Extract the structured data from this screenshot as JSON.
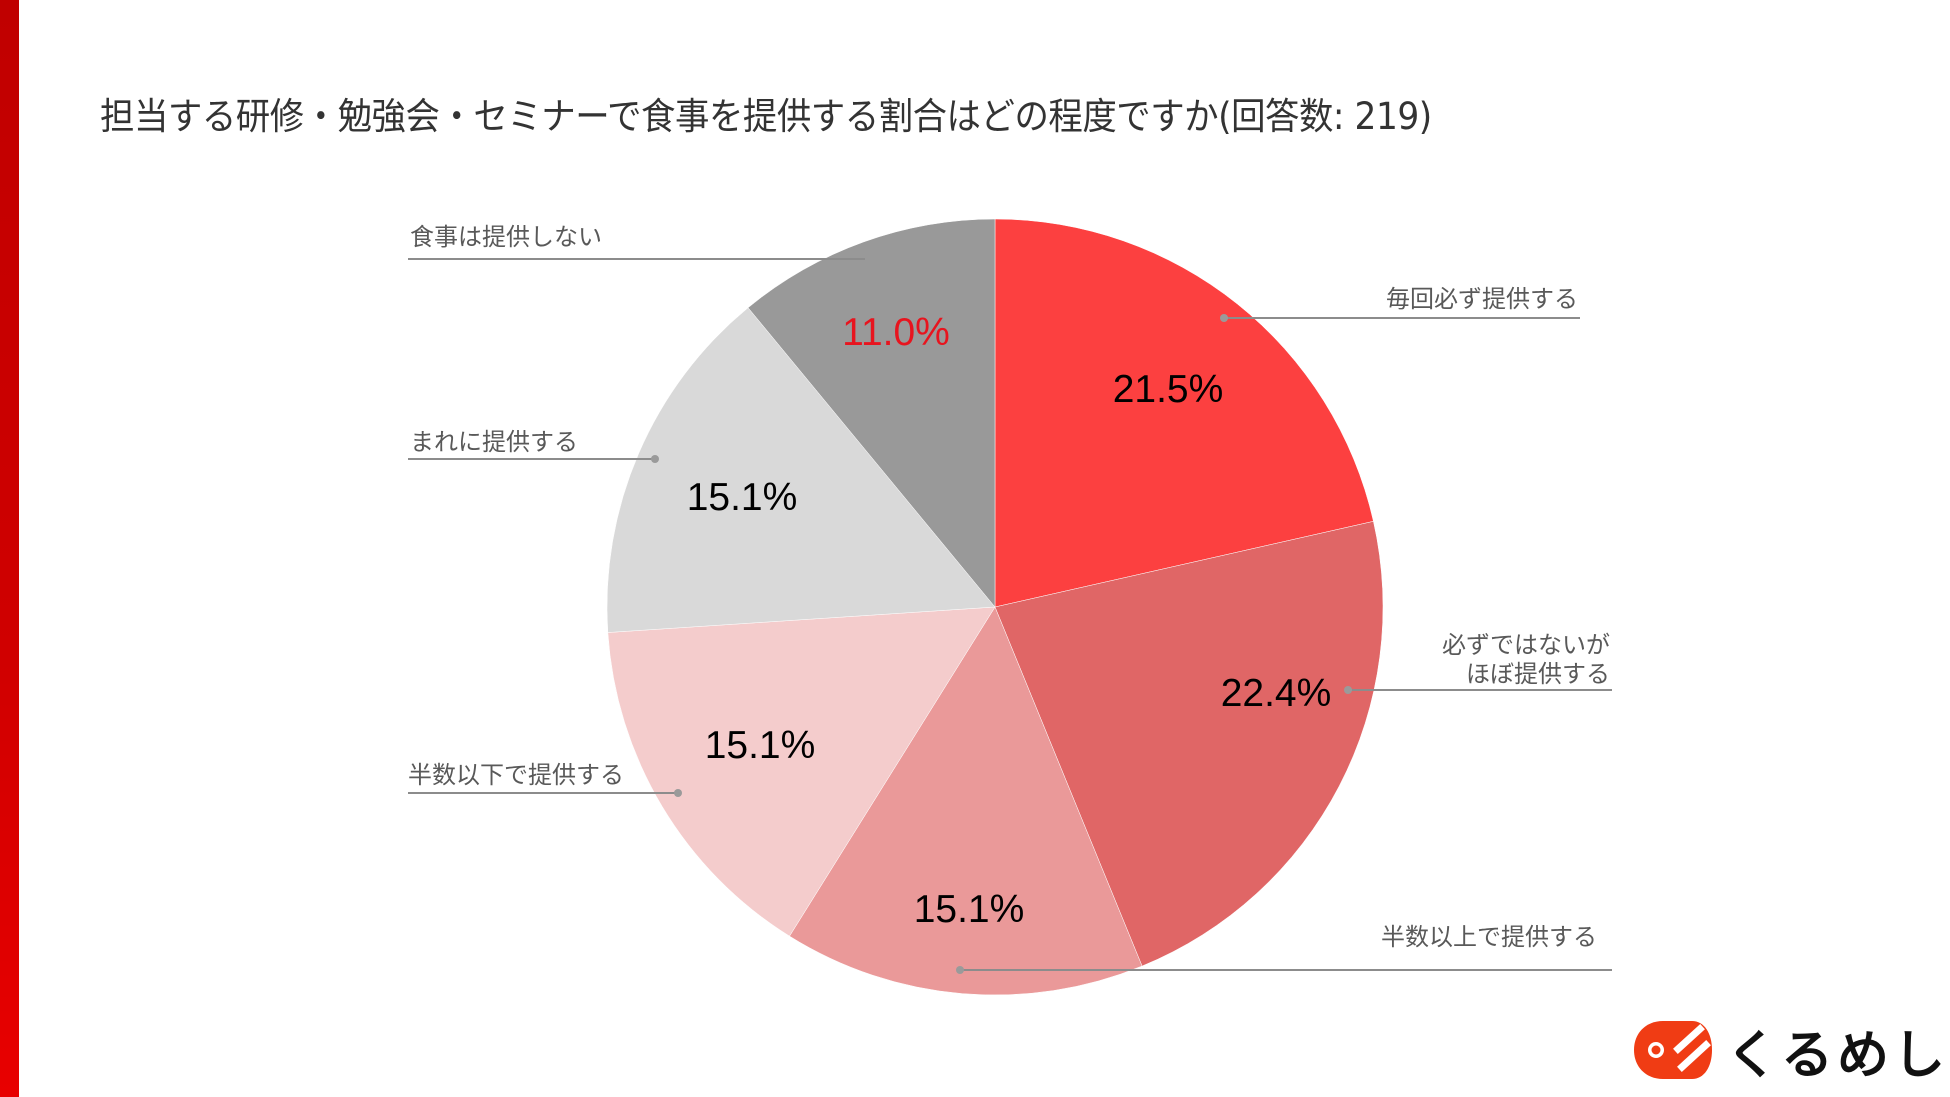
{
  "title": "担当する研修・勉強会・セミナーで食事を提供する割合はどの程度ですか(回答数: 219)",
  "brand": {
    "name": "くるめし",
    "color": "#f03c14",
    "accent_bar": "#c80000"
  },
  "chart_data": {
    "type": "pie",
    "title": "担当する研修・勉強会・セミナーで食事を提供する割合はどの程度ですか(回答数: 219)",
    "respondents": 219,
    "start_angle": "12 o'clock, clockwise",
    "legend_position": "leader-line labels",
    "categories": [
      "毎回必ず提供する",
      "必ずではないがほぼ提供する",
      "半数以上で提供する",
      "半数以下で提供する",
      "まれに提供する",
      "食事は提供しない"
    ],
    "values": [
      21.5,
      22.4,
      15.1,
      15.1,
      15.1,
      11.0
    ],
    "colors": [
      "#fc4040",
      "#e06666",
      "#ea9999",
      "#f4cccc",
      "#d9d9d9",
      "#999999"
    ],
    "value_labels": [
      "21.5%",
      "22.4%",
      "15.1%",
      "15.1%",
      "15.1%",
      "11.0%"
    ],
    "value_label_colors": [
      "#000000",
      "#000000",
      "#000000",
      "#000000",
      "#000000",
      "#e8141e"
    ]
  },
  "labels": {
    "every_time": "毎回必ず提供する",
    "almost_line1": "必ずではないが",
    "almost_line2": "ほぼ提供する",
    "more_than_half": "半数以上で提供する",
    "less_than_half": "半数以下で提供する",
    "rarely": "まれに提供する",
    "never": "食事は提供しない"
  },
  "percents": {
    "every_time": "21.5%",
    "almost": "22.4%",
    "more_than_half": "15.1%",
    "less_than_half": "15.1%",
    "rarely": "15.1%",
    "never": "11.0%"
  }
}
